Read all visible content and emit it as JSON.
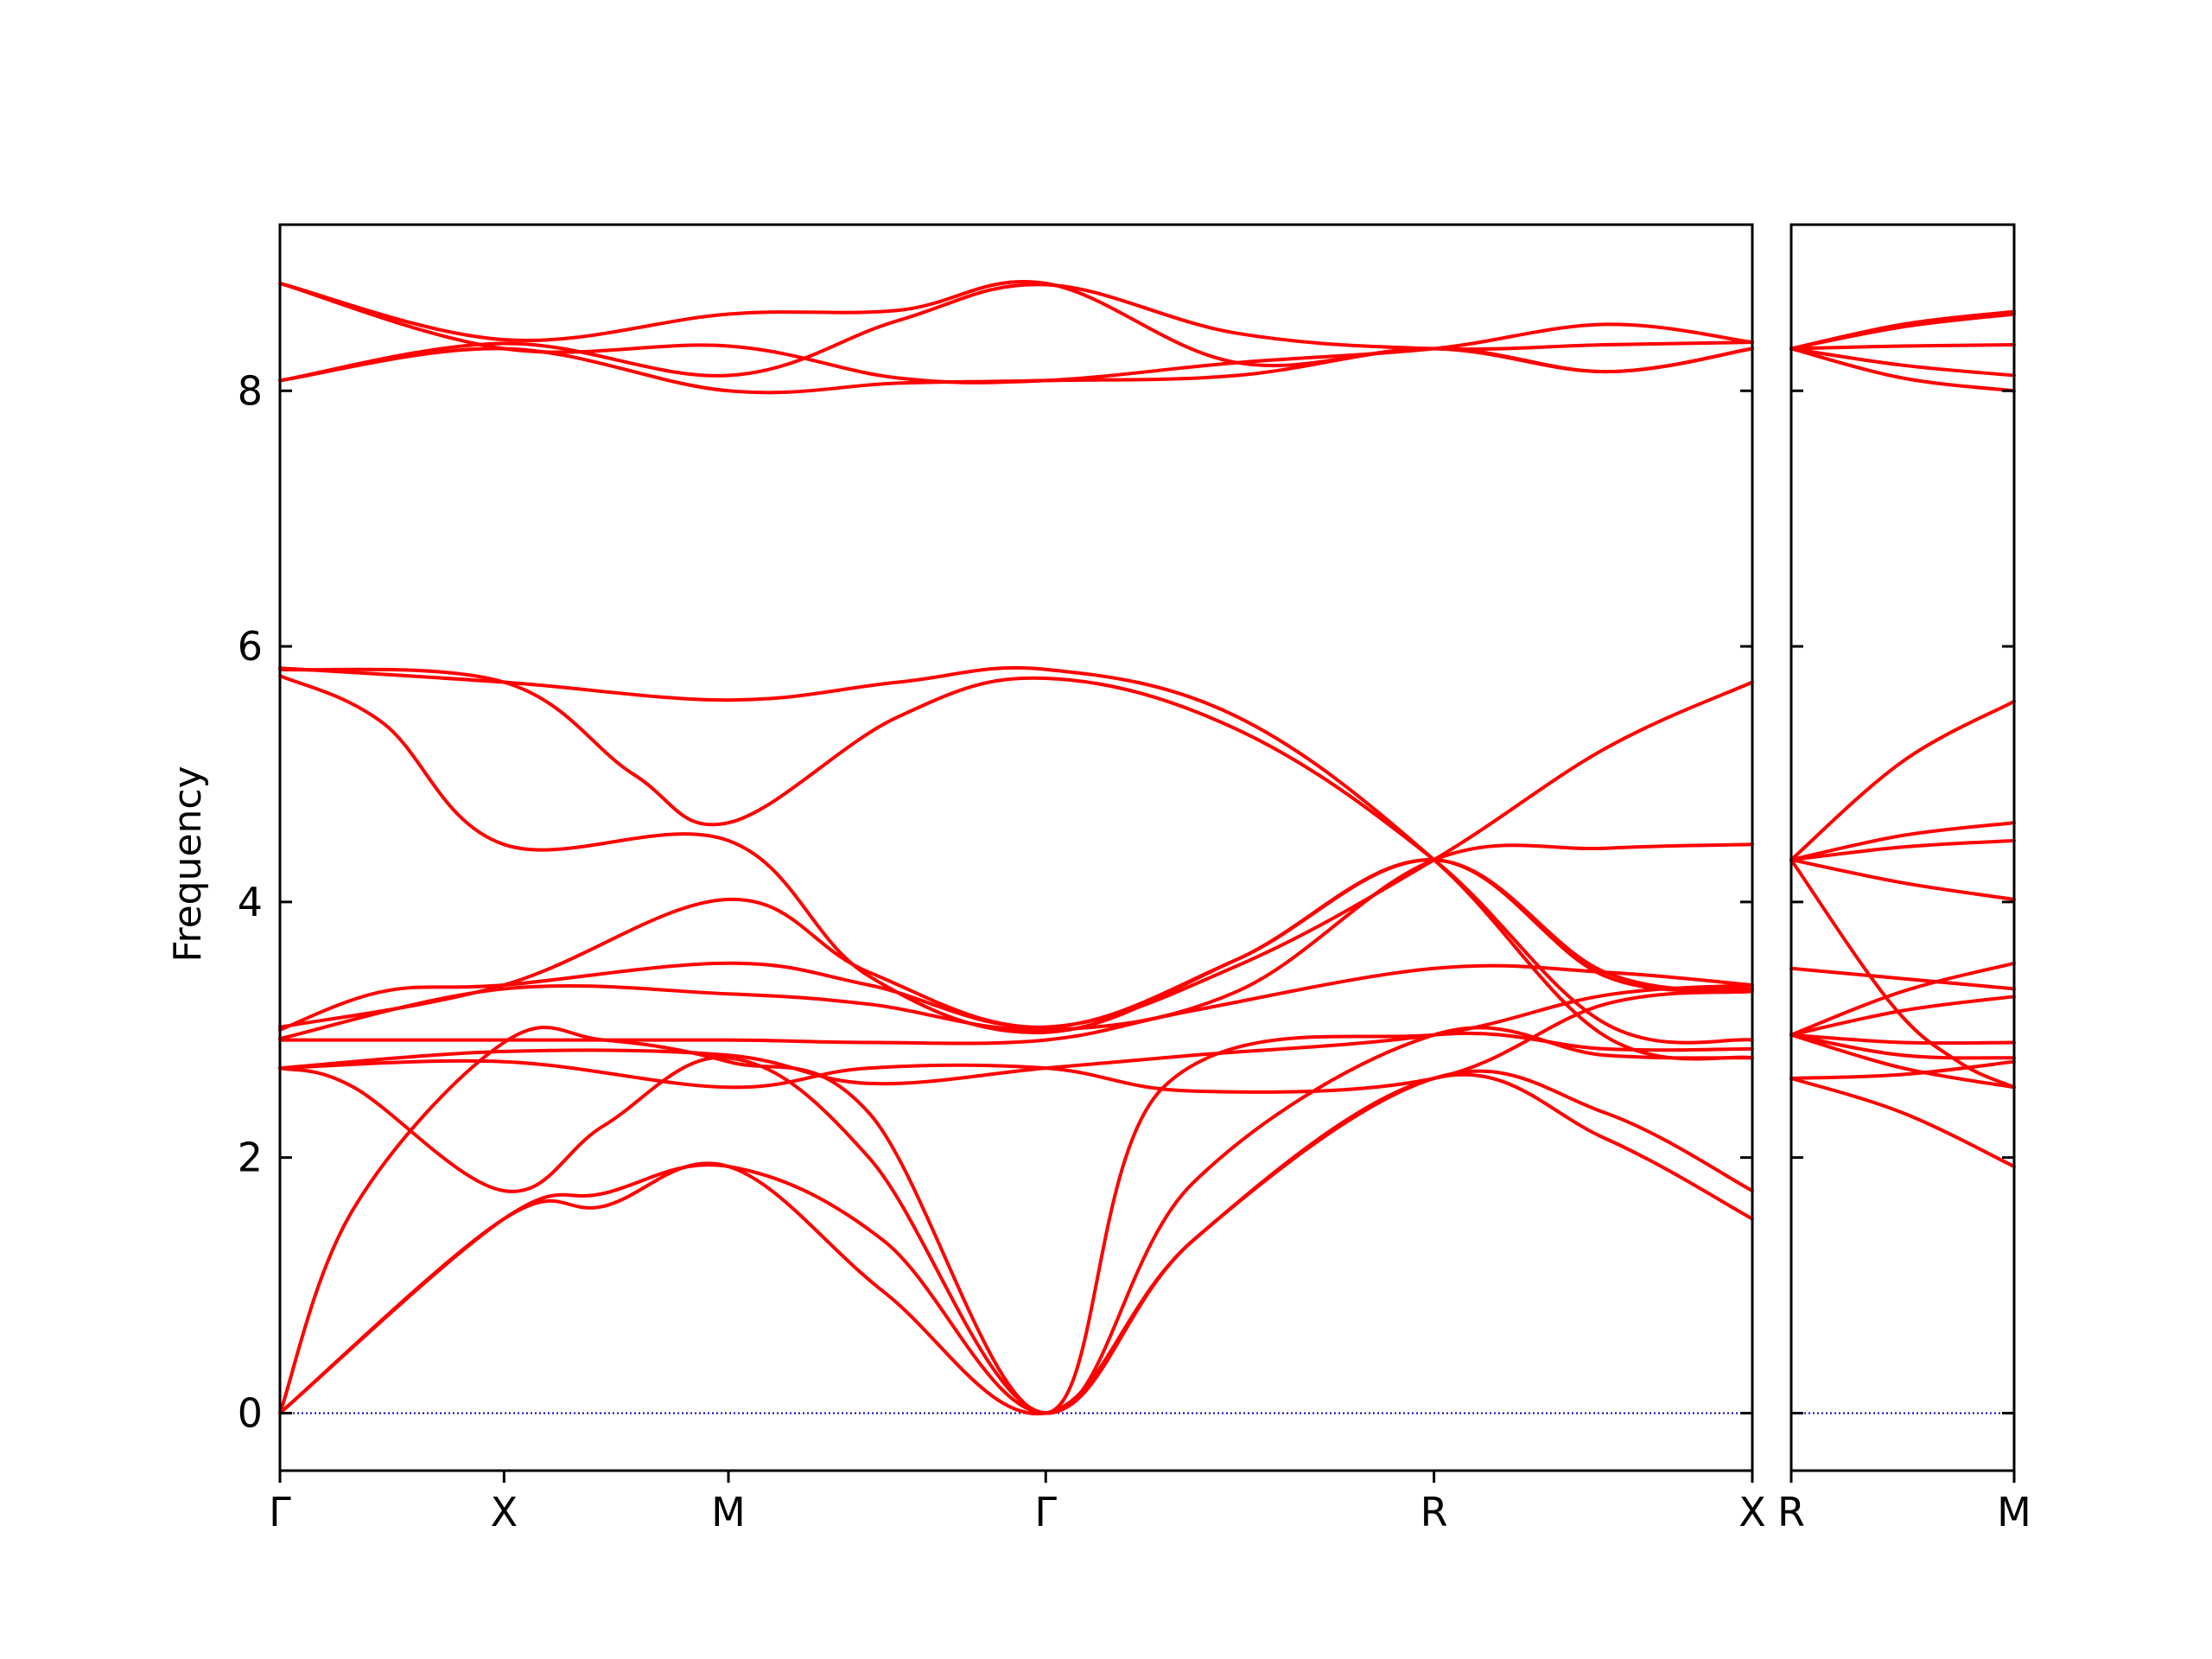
{
  "chart_data": {
    "type": "line",
    "title": "",
    "ylabel": "Frequency",
    "xlabel": "",
    "ylim": [
      -0.45,
      9.3
    ],
    "yticks": [
      0,
      2,
      4,
      6,
      8
    ],
    "grid": false,
    "legend": "none",
    "colors": {
      "bands": "#ff0000",
      "zero_line": "#0000cc",
      "axes": "#000000"
    },
    "panels": [
      {
        "id": "main",
        "xlim": [
          0,
          1
        ],
        "xticks": [
          {
            "label": "Γ",
            "x": 0.0
          },
          {
            "label": "X",
            "x": 0.1522
          },
          {
            "label": "M",
            "x": 0.3046
          },
          {
            "label": "Γ",
            "x": 0.5201
          },
          {
            "label": "R",
            "x": 0.7838
          },
          {
            "label": "X",
            "x": 1.0
          }
        ],
        "bands": [
          {
            "x": [
              0,
              0.1522,
              0.22,
              0.3046,
              0.41,
              0.5201,
              0.62,
              0.7838,
              0.9,
              1.0
            ],
            "y": [
              0,
              1.52,
              1.62,
              1.93,
              0.95,
              0,
              1.35,
              2.62,
              2.15,
              1.52
            ]
          },
          {
            "x": [
              0,
              0.1522,
              0.22,
              0.3046,
              0.41,
              0.5201,
              0.62,
              0.7838,
              0.9,
              1.0
            ],
            "y": [
              0,
              1.52,
              1.72,
              1.93,
              1.35,
              0,
              1.35,
              2.62,
              2.35,
              1.74
            ]
          },
          {
            "x": [
              0,
              0.05,
              0.1522,
              0.22,
              0.3046,
              0.4,
              0.5201,
              0.62,
              0.7838,
              0.9,
              1.0
            ],
            "y": [
              2.7,
              2.55,
              1.74,
              2.25,
              2.78,
              2.0,
              0,
              1.8,
              2.96,
              2.8,
              2.78
            ]
          },
          {
            "x": [
              0,
              0.05,
              0.1522,
              0.22,
              0.3046,
              0.4,
              0.5201,
              0.6,
              0.7838,
              0.9,
              1.0
            ],
            "y": [
              0,
              1.6,
              2.9,
              2.92,
              2.75,
              2.35,
              0,
              2.55,
              2.96,
              2.85,
              2.85
            ]
          },
          {
            "x": [
              0,
              0.1522,
              0.3046,
              0.4,
              0.5201,
              0.62,
              0.7838,
              0.9,
              1.0
            ],
            "y": [
              2.7,
              2.75,
              2.55,
              2.7,
              2.7,
              2.52,
              2.62,
              3.2,
              3.3
            ]
          },
          {
            "x": [
              0,
              0.1522,
              0.3046,
              0.4,
              0.5201,
              0.62,
              0.7838,
              0.9,
              1.0
            ],
            "y": [
              2.7,
              2.83,
              2.8,
              2.58,
              2.7,
              2.8,
              2.96,
              3.27,
              3.35
            ]
          },
          {
            "x": [
              0,
              0.1522,
              0.3046,
              0.4,
              0.5201,
              0.62,
              0.7838,
              0.9,
              1.0
            ],
            "y": [
              2.92,
              2.92,
              2.92,
              2.9,
              2.92,
              3.15,
              3.48,
              3.45,
              3.35
            ]
          },
          {
            "x": [
              0,
              0.1522,
              0.3046,
              0.4,
              0.5201,
              0.65,
              0.7838,
              0.9,
              1.0
            ],
            "y": [
              2.93,
              3.32,
              3.28,
              3.2,
              3.0,
              3.3,
              4.33,
              4.42,
              4.45
            ]
          },
          {
            "x": [
              0,
              0.07,
              0.1522,
              0.3046,
              0.4,
              0.5201,
              0.65,
              0.7838,
              0.9,
              1.0
            ],
            "y": [
              3.0,
              3.3,
              3.35,
              3.52,
              3.35,
              3.02,
              3.5,
              4.33,
              5.2,
              5.72
            ]
          },
          {
            "x": [
              0,
              0.1522,
              0.3046,
              0.4,
              0.5201,
              0.65,
              0.7838,
              0.9,
              1.0
            ],
            "y": [
              3.02,
              3.35,
              4.02,
              3.45,
              3.02,
              3.55,
              4.33,
              3.45,
              3.3
            ]
          },
          {
            "x": [
              0,
              0.07,
              0.1522,
              0.3046,
              0.4,
              0.5201,
              0.65,
              0.7838,
              0.9,
              1.0
            ],
            "y": [
              5.77,
              5.4,
              4.45,
              4.48,
              3.42,
              2.98,
              3.55,
              4.33,
              3.42,
              3.32
            ]
          },
          {
            "x": [
              0,
              0.1522,
              0.24,
              0.3046,
              0.42,
              0.5201,
              0.65,
              0.7838,
              0.9,
              1.0
            ],
            "y": [
              5.82,
              5.72,
              5.0,
              4.62,
              5.45,
              5.75,
              5.35,
              4.33,
              3.05,
              2.92
            ]
          },
          {
            "x": [
              0,
              0.1522,
              0.3046,
              0.42,
              0.5201,
              0.65,
              0.7838,
              0.9,
              1.0
            ],
            "y": [
              5.83,
              5.72,
              5.58,
              5.72,
              5.82,
              5.45,
              4.33,
              2.95,
              2.78
            ]
          },
          {
            "x": [
              0,
              0.1522,
              0.3046,
              0.42,
              0.5201,
              0.65,
              0.7838,
              0.9,
              1.0
            ],
            "y": [
              8.08,
              8.33,
              8.0,
              8.06,
              8.08,
              8.12,
              8.33,
              8.15,
              8.33
            ]
          },
          {
            "x": [
              0,
              0.1522,
              0.3046,
              0.42,
              0.5201,
              0.65,
              0.7838,
              0.9,
              1.0
            ],
            "y": [
              8.08,
              8.37,
              8.12,
              8.55,
              8.83,
              8.45,
              8.33,
              8.36,
              8.38
            ]
          },
          {
            "x": [
              0,
              0.1522,
              0.3046,
              0.42,
              0.5201,
              0.65,
              0.7838,
              0.9,
              1.0
            ],
            "y": [
              8.84,
              8.33,
              8.35,
              8.1,
              8.08,
              8.22,
              8.33,
              8.52,
              8.38
            ]
          },
          {
            "x": [
              0,
              0.1522,
              0.3046,
              0.42,
              0.5201,
              0.65,
              0.7838,
              0.9,
              1.0
            ],
            "y": [
              8.84,
              8.4,
              8.6,
              8.63,
              8.84,
              8.22,
              8.33,
              8.15,
              8.33
            ]
          }
        ]
      },
      {
        "id": "side",
        "xlim": [
          0,
          1
        ],
        "xticks": [
          {
            "label": "R",
            "x": 0.0
          },
          {
            "label": "M",
            "x": 1.0
          }
        ],
        "bands": [
          {
            "x": [
              0,
              0.5,
              1
            ],
            "y": [
              2.62,
              2.35,
              1.93
            ]
          },
          {
            "x": [
              0,
              0.5,
              1
            ],
            "y": [
              2.62,
              2.65,
              2.75
            ]
          },
          {
            "x": [
              0,
              0.5,
              1
            ],
            "y": [
              2.96,
              2.7,
              2.55
            ]
          },
          {
            "x": [
              0,
              0.5,
              1
            ],
            "y": [
              2.96,
              2.8,
              2.78
            ]
          },
          {
            "x": [
              0,
              0.5,
              1
            ],
            "y": [
              2.96,
              2.9,
              2.9
            ]
          },
          {
            "x": [
              0,
              0.5,
              1
            ],
            "y": [
              2.96,
              3.3,
              3.52
            ]
          },
          {
            "x": [
              0,
              0.5,
              1
            ],
            "y": [
              3.48,
              3.4,
              3.32
            ]
          },
          {
            "x": [
              0,
              0.5,
              1
            ],
            "y": [
              2.96,
              3.15,
              3.26
            ]
          },
          {
            "x": [
              0,
              0.45,
              0.75,
              1
            ],
            "y": [
              4.33,
              3.2,
              2.75,
              2.55
            ]
          },
          {
            "x": [
              0,
              0.5,
              1
            ],
            "y": [
              4.33,
              4.15,
              4.02
            ]
          },
          {
            "x": [
              0,
              0.5,
              1
            ],
            "y": [
              4.33,
              4.43,
              4.48
            ]
          },
          {
            "x": [
              0,
              0.5,
              1
            ],
            "y": [
              4.33,
              4.52,
              4.62
            ]
          },
          {
            "x": [
              0,
              0.5,
              1
            ],
            "y": [
              4.33,
              5.1,
              5.57
            ]
          },
          {
            "x": [
              0,
              0.5,
              1
            ],
            "y": [
              8.33,
              8.1,
              8.0
            ]
          },
          {
            "x": [
              0,
              0.5,
              1
            ],
            "y": [
              8.33,
              8.2,
              8.12
            ]
          },
          {
            "x": [
              0,
              0.5,
              1
            ],
            "y": [
              8.33,
              8.35,
              8.36
            ]
          },
          {
            "x": [
              0,
              0.5,
              1
            ],
            "y": [
              8.33,
              8.5,
              8.6
            ]
          },
          {
            "x": [
              0,
              0.5,
              1
            ],
            "y": [
              8.33,
              8.52,
              8.62
            ]
          }
        ]
      }
    ]
  }
}
